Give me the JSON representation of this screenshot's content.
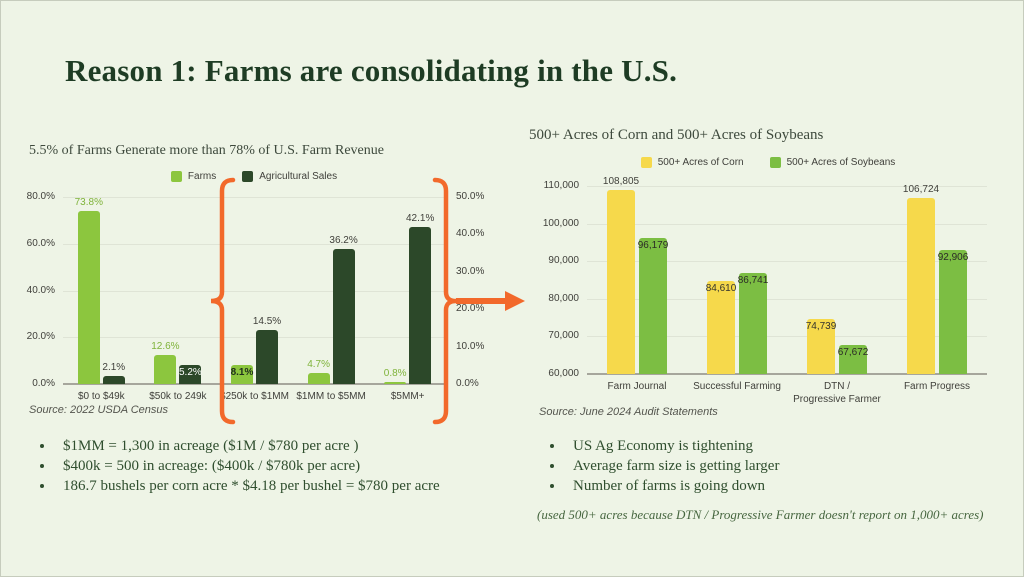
{
  "slide": {
    "title": "Reason 1: Farms are consolidating in the U.S.",
    "colors": {
      "accent_orange": "#F2692B",
      "farms_green": "#8CC63E",
      "ag_sales_dark_green": "#2C4829",
      "corn_yellow": "#F6D94B",
      "soybeans_green": "#7CBE43",
      "background": "#EEF4E6",
      "title_green": "#1E3C24"
    },
    "left": {
      "bullets": [
        "$1MM = 1,300 in acreage ($1M / $780 per acre )",
        "$400k = 500 in acreage: ($400k / $780k per acre)",
        "186.7 bushels per corn acre * $4.18 per bushel = $780 per acre"
      ]
    },
    "right": {
      "bullets": [
        "US Ag Economy is tightening",
        "Average farm size is getting larger",
        "Number of farms is going down"
      ],
      "note": "(used 500+ acres because DTN / Progressive Farmer doesn't report on 1,000+ acres)"
    }
  },
  "chart_data": [
    {
      "type": "bar",
      "title": "5.5% of Farms Generate more than 78% of U.S. Farm Revenue",
      "source": "Source: 2022 USDA Census",
      "categories": [
        "$0 to $49k",
        "$50k to 249k",
        "$250k to $1MM",
        "$1MM to $5MM",
        "$5MM+"
      ],
      "left_axis": {
        "min": 0,
        "max": 80,
        "ticks": [
          "0.0%",
          "20.0%",
          "40.0%",
          "60.0%",
          "80.0%"
        ]
      },
      "right_axis": {
        "min": 0,
        "max": 50,
        "ticks": [
          "0.0%",
          "10.0%",
          "20.0%",
          "30.0%",
          "40.0%",
          "50.0%"
        ]
      },
      "grid": true,
      "legend_position": "top",
      "series": [
        {
          "name": "Farms",
          "color": "#8CC63E",
          "axis": "left",
          "values": [
            73.8,
            12.6,
            8.1,
            4.7,
            0.8
          ],
          "labels": [
            {
              "text": "73.8%",
              "pos": "above",
              "color": "#7FB33A"
            },
            {
              "text": "12.6%",
              "pos": "above",
              "color": "#7FB33A"
            },
            {
              "text": "8.1%",
              "pos": "inside",
              "color": "#1F2E1B",
              "bold": true
            },
            {
              "text": "4.7%",
              "pos": "above",
              "color": "#7FB33A"
            },
            {
              "text": "0.8%",
              "pos": "above",
              "color": "#7FB33A"
            }
          ]
        },
        {
          "name": "Agricultural Sales",
          "color": "#2C4829",
          "axis": "right",
          "values": [
            2.1,
            5.2,
            14.5,
            36.2,
            42.1
          ],
          "labels": [
            {
              "text": "2.1%",
              "pos": "above",
              "color": "#3F3F3A"
            },
            {
              "text": "5.2%",
              "pos": "inside",
              "color": "#FFFFFF"
            },
            {
              "text": "14.5%",
              "pos": "above",
              "color": "#3F3F3A"
            },
            {
              "text": "36.2%",
              "pos": "above",
              "color": "#3F3F3A"
            },
            {
              "text": "42.1%",
              "pos": "above",
              "color": "#3F3F3A"
            }
          ]
        }
      ]
    },
    {
      "type": "bar",
      "title": "500+ Acres of Corn and 500+ Acres of Soybeans",
      "source": "Source: June 2024 Audit Statements",
      "categories": [
        "Farm Journal",
        "Successful Farming",
        "DTN /\nProgressive Farmer",
        "Farm Progress"
      ],
      "left_axis": {
        "min": 60000,
        "max": 110000,
        "ticks": [
          "60,000",
          "70,000",
          "80,000",
          "90,000",
          "100,000",
          "110,000"
        ]
      },
      "grid": true,
      "legend_position": "top",
      "series": [
        {
          "name": "500+ Acres of Corn",
          "color": "#F6D94B",
          "axis": "left",
          "values": [
            108805,
            84610,
            74739,
            106724
          ],
          "labels": [
            {
              "text": "108,805",
              "pos": "above",
              "color": "#3F3F3A"
            },
            {
              "text": "84,610",
              "pos": "inside",
              "color": "#33332E"
            },
            {
              "text": "74,739",
              "pos": "inside",
              "color": "#33332E"
            },
            {
              "text": "106,724",
              "pos": "above",
              "color": "#3F3F3A"
            }
          ]
        },
        {
          "name": "500+ Acres of Soybeans",
          "color": "#7CBE43",
          "axis": "left",
          "values": [
            96179,
            86741,
            67672,
            92906
          ],
          "labels": [
            {
              "text": "96,179",
              "pos": "inside",
              "color": "#2B2B26"
            },
            {
              "text": "86,741",
              "pos": "inside",
              "color": "#2B2B26"
            },
            {
              "text": "67,672",
              "pos": "inside",
              "color": "#2B2B26"
            },
            {
              "text": "92,906",
              "pos": "inside",
              "color": "#2B2B26"
            }
          ]
        }
      ]
    }
  ]
}
